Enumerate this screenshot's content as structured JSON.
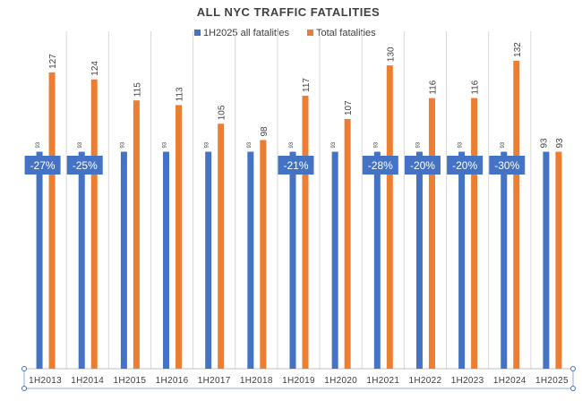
{
  "chart_data": {
    "type": "bar",
    "title": "ALL NYC TRAFFIC FATALITIES",
    "categories": [
      "1H2013",
      "1H2014",
      "1H2015",
      "1H2016",
      "1H2017",
      "1H2018",
      "1H2019",
      "1H2020",
      "1H2021",
      "1H2022",
      "1H2023",
      "1H2024",
      "1H2025"
    ],
    "series": [
      {
        "name": "1H2025 all fatalities",
        "color": "#4472c4",
        "values": [
          93,
          93,
          93,
          93,
          93,
          93,
          93,
          93,
          93,
          93,
          93,
          93,
          93
        ]
      },
      {
        "name": "Total fatalities",
        "color": "#ed7d31",
        "values": [
          127,
          124,
          115,
          113,
          105,
          98,
          117,
          107,
          130,
          116,
          116,
          132,
          93
        ]
      }
    ],
    "callouts": [
      {
        "category": "1H2013",
        "text": "-27%"
      },
      {
        "category": "1H2014",
        "text": "-25%"
      },
      {
        "category": "1H2019",
        "text": "-21%"
      },
      {
        "category": "1H2021",
        "text": "-28%"
      },
      {
        "category": "1H2022",
        "text": "-20%"
      },
      {
        "category": "1H2023",
        "text": "-20%"
      },
      {
        "category": "1H2024",
        "text": "-30%"
      }
    ],
    "callout_color": "#4472c4",
    "ylim": [
      0,
      140
    ],
    "grid": "vertical category lines",
    "legend_position": "top-center",
    "xlabel": "",
    "ylabel": ""
  }
}
